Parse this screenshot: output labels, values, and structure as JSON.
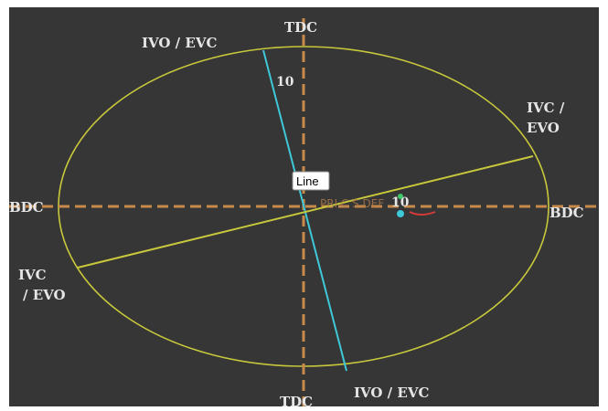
{
  "labels": {
    "tdc_top": "TDC",
    "tdc_bottom": "TDC",
    "bdc_left": "BDC",
    "bdc_right": "BDC",
    "ivo_evc_top": "IVO / EVC",
    "ivo_evc_bottom": "IVO / EVC",
    "ivc_evo_right_1": "IVC /",
    "ivc_evo_right_2": "EVO",
    "ivc_evo_left_1": "IVC",
    "ivc_evo_left_2": "/ EVO"
  },
  "ticks": {
    "vertical": "10",
    "horizontal": "10"
  },
  "tooltip": {
    "text": "Line"
  },
  "markers": {
    "text": "PRI C S DEF"
  },
  "colors": {
    "background": "#363636",
    "ellipse": "#c8c83c",
    "axis": "#c88a4a",
    "ivo_line": "#3ec8d8",
    "ivc_line": "#c8c83c",
    "marker_cyan": "#3ec8d8",
    "marker_red": "#d83a3a",
    "marker_green": "#3ec868"
  }
}
